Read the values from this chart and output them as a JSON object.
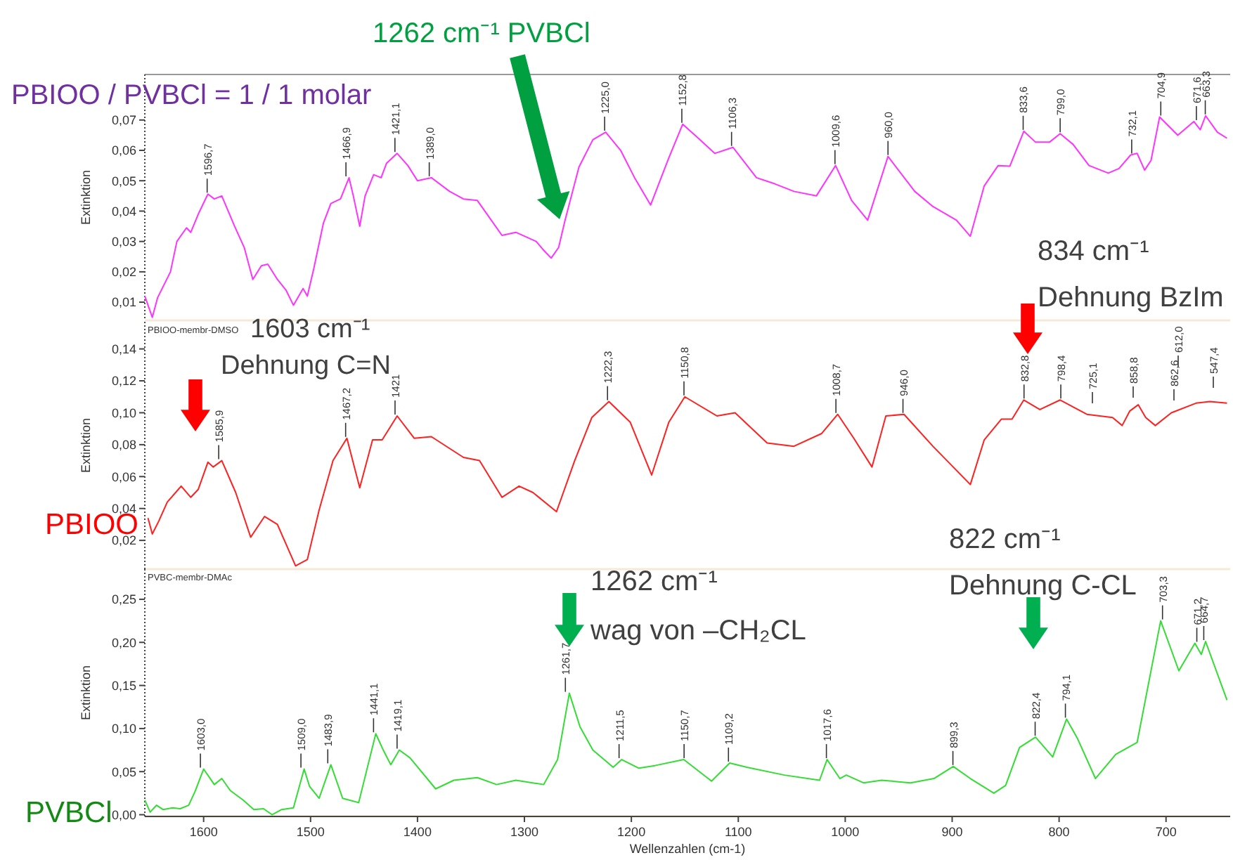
{
  "chart_data": [
    {
      "type": "line",
      "title": "PBIOO / PVBCl = 1 / 1 molar",
      "ylabel": "Extinktion",
      "xlim": [
        1655,
        640
      ],
      "ylim": [
        0.004,
        0.085
      ],
      "tick_labels": "y",
      "yticks": [
        {
          "value": 0.01,
          "label": "0,01"
        },
        {
          "value": 0.02,
          "label": "0,02"
        },
        {
          "value": 0.03,
          "label": "0,03"
        },
        {
          "value": 0.04,
          "label": "0,04"
        },
        {
          "value": 0.05,
          "label": "0,05"
        },
        {
          "value": 0.06,
          "label": "0,06"
        },
        {
          "value": 0.07,
          "label": "0,07"
        }
      ],
      "series": [
        {
          "color": "#ff33ff",
          "x": [
            1655,
            1648,
            1643,
            1631,
            1625,
            1616,
            1612,
            1605,
            1596,
            1590,
            1583,
            1571,
            1562,
            1554,
            1546,
            1540,
            1531,
            1523,
            1516,
            1507,
            1503,
            1497,
            1488,
            1481,
            1472,
            1464,
            1460,
            1454,
            1449,
            1441,
            1434,
            1429,
            1419,
            1409,
            1400,
            1387,
            1370,
            1357,
            1344,
            1331,
            1321,
            1308,
            1289,
            1283,
            1275,
            1268,
            1262,
            1249,
            1236,
            1224,
            1210,
            1197,
            1182,
            1165,
            1152,
            1139,
            1122,
            1105,
            1083,
            1066,
            1048,
            1027,
            1009,
            994,
            979,
            960,
            935,
            918,
            896,
            883,
            870,
            857,
            846,
            833,
            822,
            809,
            799,
            787,
            772,
            754,
            744,
            733,
            727,
            720,
            714,
            706,
            689,
            674,
            668,
            663,
            652,
            643
          ],
          "values": [
            0.012,
            0.005,
            0.0115,
            0.02,
            0.03,
            0.0345,
            0.033,
            0.039,
            0.0456,
            0.044,
            0.045,
            0.035,
            0.028,
            0.0175,
            0.022,
            0.0225,
            0.0175,
            0.014,
            0.009,
            0.0145,
            0.012,
            0.021,
            0.036,
            0.0425,
            0.044,
            0.051,
            0.045,
            0.035,
            0.045,
            0.052,
            0.051,
            0.0557,
            0.059,
            0.055,
            0.05,
            0.051,
            0.0465,
            0.044,
            0.0435,
            0.037,
            0.032,
            0.033,
            0.03,
            0.0275,
            0.0245,
            0.028,
            0.037,
            0.0545,
            0.0635,
            0.066,
            0.06,
            0.051,
            0.042,
            0.0575,
            0.0686,
            0.0645,
            0.059,
            0.061,
            0.051,
            0.049,
            0.0465,
            0.045,
            0.055,
            0.0435,
            0.037,
            0.058,
            0.0465,
            0.0415,
            0.037,
            0.0317,
            0.0483,
            0.055,
            0.0548,
            0.0663,
            0.0627,
            0.0627,
            0.0655,
            0.062,
            0.055,
            0.0525,
            0.054,
            0.0585,
            0.059,
            0.0535,
            0.0567,
            0.071,
            0.065,
            0.0695,
            0.0668,
            0.0714,
            0.066,
            0.064
          ]
        }
      ],
      "annotations": [
        "1262 cm⁻¹ PVBCl",
        {
          "text": "1596,7",
          "x": 1596.7,
          "y": 0.0456
        },
        {
          "text": "1466,9",
          "x": 1466.9,
          "y": 0.051
        },
        {
          "text": "1421,1",
          "x": 1421.1,
          "y": 0.059
        },
        {
          "text": "1389,0",
          "x": 1389,
          "y": 0.051
        },
        {
          "text": "1225,0",
          "x": 1225,
          "y": 0.066
        },
        {
          "text": "1152,8",
          "x": 1152.8,
          "y": 0.0686
        },
        {
          "text": "1106,3",
          "x": 1106.3,
          "y": 0.061
        },
        {
          "text": "1009,6",
          "x": 1009.6,
          "y": 0.055
        },
        {
          "text": "960,0",
          "x": 960,
          "y": 0.058
        },
        {
          "text": "833,6",
          "x": 833.6,
          "y": 0.0663
        },
        {
          "text": "799,0",
          "x": 799,
          "y": 0.0655
        },
        {
          "text": "732,1",
          "x": 732.1,
          "y": 0.0585
        },
        {
          "text": "704,9",
          "x": 704.9,
          "y": 0.071
        },
        {
          "text": "671,6",
          "x": 671.6,
          "y": 0.0695
        },
        {
          "text": "663,3",
          "x": 663.3,
          "y": 0.0714
        }
      ]
    },
    {
      "type": "line",
      "subtitle": "PBIOO-membr-DMSO",
      "ylabel": "Extinktion",
      "xlim": [
        1655,
        640
      ],
      "ylim": [
        0.002,
        0.157
      ],
      "tick_labels": "y",
      "yticks": [
        {
          "value": 0.02,
          "label": "0,02"
        },
        {
          "value": 0.04,
          "label": "0,04"
        },
        {
          "value": 0.06,
          "label": "0,06"
        },
        {
          "value": 0.08,
          "label": "0,08"
        },
        {
          "value": 0.1,
          "label": "0,10"
        },
        {
          "value": 0.12,
          "label": "0,12"
        },
        {
          "value": 0.14,
          "label": "0,14"
        }
      ],
      "series": [
        {
          "name": "PBIOO",
          "color": "#ff2020",
          "x": [
            1652,
            1648,
            1642,
            1634,
            1621,
            1612,
            1605,
            1596,
            1591,
            1583,
            1570,
            1556,
            1543,
            1531,
            1514,
            1503,
            1492,
            1479,
            1466,
            1454,
            1442,
            1433,
            1419,
            1403,
            1387,
            1357,
            1342,
            1321,
            1305,
            1292,
            1270,
            1253,
            1237,
            1221,
            1201,
            1181,
            1165,
            1150,
            1120,
            1103,
            1073,
            1048,
            1022,
            1007,
            992,
            975,
            962,
            945,
            918,
            883,
            870,
            854,
            844,
            833,
            818,
            799,
            774,
            750,
            741,
            734,
            726,
            719,
            710,
            695,
            672,
            659,
            643
          ],
          "values": [
            0.034,
            0.024,
            0.032,
            0.044,
            0.054,
            0.047,
            0.052,
            0.069,
            0.066,
            0.07,
            0.05,
            0.022,
            0.035,
            0.03,
            0.004,
            0.008,
            0.039,
            0.07,
            0.084,
            0.053,
            0.083,
            0.083,
            0.098,
            0.084,
            0.085,
            0.072,
            0.07,
            0.047,
            0.054,
            0.05,
            0.038,
            0.07,
            0.097,
            0.107,
            0.094,
            0.061,
            0.094,
            0.11,
            0.098,
            0.1,
            0.081,
            0.079,
            0.087,
            0.099,
            0.084,
            0.066,
            0.098,
            0.099,
            0.079,
            0.055,
            0.083,
            0.096,
            0.096,
            0.108,
            0.102,
            0.108,
            0.099,
            0.097,
            0.092,
            0.101,
            0.105,
            0.097,
            0.092,
            0.1,
            0.106,
            0.107,
            0.106
          ]
        }
      ],
      "annotations": [
        "1603 cm⁻¹",
        "Dehnung C=N",
        "834 cm⁻¹",
        "Dehnung BzIm",
        {
          "text": "1585,9",
          "x": 1585.9,
          "y": 0.07
        },
        {
          "text": "1467,2",
          "x": 1467.2,
          "y": 0.084
        },
        {
          "text": "1421",
          "x": 1421,
          "y": 0.098
        },
        {
          "text": "1222,3",
          "x": 1222.3,
          "y": 0.107
        },
        {
          "text": "1150,8",
          "x": 1150.8,
          "y": 0.11
        },
        {
          "text": "1008,7",
          "x": 1008.7,
          "y": 0.099
        },
        {
          "text": "946,0",
          "x": 946,
          "y": 0.099
        },
        {
          "text": "832,8",
          "x": 832.8,
          "y": 0.108
        },
        {
          "text": "798,4",
          "x": 798.4,
          "y": 0.108
        },
        "725,1",
        "858,8",
        "862,6",
        "612,0",
        "547,4"
      ]
    },
    {
      "type": "line",
      "subtitle": "PVBC-membr-DMAc",
      "ylabel": "Extinktion",
      "xlabel": "Wellenzahlen (cm-1)",
      "xlim": [
        1655,
        640
      ],
      "ylim": [
        -0.002,
        0.285
      ],
      "xticks": [
        1600,
        1500,
        1400,
        1300,
        1200,
        1100,
        1000,
        900,
        800,
        700
      ],
      "yticks": [
        {
          "value": 0,
          "label": "0,00"
        },
        {
          "value": 0.05,
          "label": "0,05"
        },
        {
          "value": 0.1,
          "label": "0,10"
        },
        {
          "value": 0.15,
          "label": "0,15"
        },
        {
          "value": 0.2,
          "label": "0,20"
        },
        {
          "value": 0.25,
          "label": "0,25"
        }
      ],
      "series": [
        {
          "name": "PVBCl",
          "color": "#33dd33",
          "x": [
            1655,
            1650,
            1644,
            1638,
            1629,
            1622,
            1614,
            1608,
            1600,
            1590,
            1583,
            1575,
            1563,
            1553,
            1544,
            1536,
            1527,
            1516,
            1506,
            1501,
            1492,
            1481,
            1470,
            1455,
            1439,
            1432,
            1425,
            1417,
            1407,
            1383,
            1366,
            1344,
            1326,
            1308,
            1282,
            1269,
            1258,
            1248,
            1236,
            1217,
            1209,
            1193,
            1178,
            1151,
            1125,
            1108,
            1092,
            1057,
            1024,
            1017,
            1005,
            999,
            983,
            966,
            939,
            917,
            899,
            883,
            861,
            850,
            837,
            822,
            806,
            793,
            783,
            766,
            747,
            727,
            705,
            688,
            673,
            667,
            663,
            643
          ],
          "values": [
            0.017,
            0.003,
            0.011,
            0.006,
            0.008,
            0.007,
            0.011,
            0.027,
            0.053,
            0.035,
            0.042,
            0.028,
            0.017,
            0.006,
            0.007,
            0.0,
            0.006,
            0.008,
            0.053,
            0.033,
            0.019,
            0.058,
            0.019,
            0.014,
            0.094,
            0.075,
            0.058,
            0.075,
            0.066,
            0.03,
            0.04,
            0.043,
            0.035,
            0.04,
            0.035,
            0.064,
            0.141,
            0.102,
            0.075,
            0.055,
            0.064,
            0.054,
            0.057,
            0.064,
            0.039,
            0.06,
            0.055,
            0.046,
            0.04,
            0.064,
            0.042,
            0.046,
            0.037,
            0.04,
            0.037,
            0.042,
            0.056,
            0.042,
            0.025,
            0.034,
            0.078,
            0.09,
            0.067,
            0.111,
            0.089,
            0.042,
            0.07,
            0.084,
            0.225,
            0.167,
            0.199,
            0.186,
            0.201,
            0.133
          ]
        }
      ],
      "annotations": [
        "822 cm⁻¹",
        "Dehnung C-CL",
        "1262 cm⁻¹",
        "wag von –CH₂CL",
        {
          "text": "1603,0",
          "x": 1603,
          "y": 0.053
        },
        {
          "text": "1509,0",
          "x": 1509,
          "y": 0.053
        },
        {
          "text": "1483,9",
          "x": 1483.9,
          "y": 0.058
        },
        {
          "text": "1441,1",
          "x": 1441.1,
          "y": 0.094
        },
        {
          "text": "1419,1",
          "x": 1419.1,
          "y": 0.075
        },
        {
          "text": "1261,7",
          "x": 1261.7,
          "y": 0.141
        },
        {
          "text": "1211,5",
          "x": 1211.5,
          "y": 0.064
        },
        {
          "text": "1150,7",
          "x": 1150.7,
          "y": 0.064
        },
        {
          "text": "1109,2",
          "x": 1109.2,
          "y": 0.06
        },
        {
          "text": "1017,6",
          "x": 1017.6,
          "y": 0.064
        },
        {
          "text": "899,3",
          "x": 899.3,
          "y": 0.056
        },
        {
          "text": "822,4",
          "x": 822.4,
          "y": 0.09
        },
        {
          "text": "794,1",
          "x": 794.1,
          "y": 0.111
        },
        {
          "text": "703,3",
          "x": 703.3,
          "y": 0.225
        },
        {
          "text": "671,2",
          "x": 671.2,
          "y": 0.199
        },
        {
          "text": "664,7",
          "x": 664.7,
          "y": 0.201
        }
      ]
    }
  ]
}
